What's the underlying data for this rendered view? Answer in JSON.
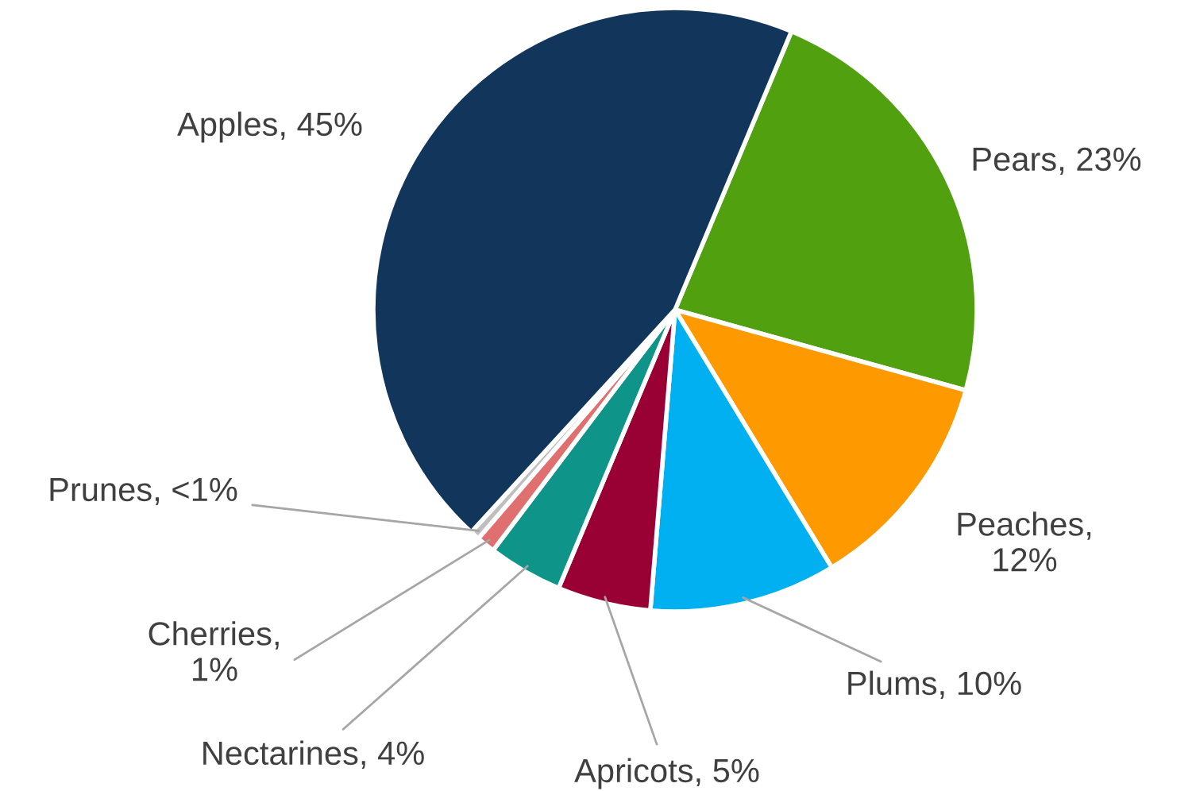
{
  "chart_data": {
    "type": "pie",
    "categories": [
      "Pears",
      "Peaches",
      "Plums",
      "Apricots",
      "Nectarines",
      "Cherries",
      "Prunes",
      "Apples"
    ],
    "values": [
      23,
      12,
      10,
      5,
      4,
      1,
      0.5,
      44.5
    ],
    "value_labels": [
      ", 23%",
      ", 12%",
      ", 10%",
      ", 5%",
      ", 4%",
      ", 1%",
      ", <1%",
      ", 45%"
    ],
    "colors": [
      "#50a00f",
      "#ff9900",
      "#00b0f0",
      "#990033",
      "#0e9488",
      "#e07070",
      "#bfbfbf",
      "#12355b"
    ],
    "legend": false
  }
}
